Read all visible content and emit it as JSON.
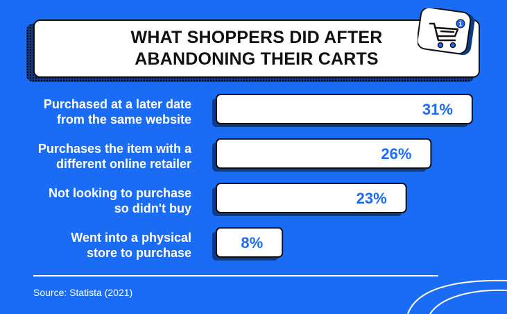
{
  "title": "WHAT SHOPPERS DID AFTER ABANDONING THEIR CARTS",
  "source": "Source: Statista (2021)",
  "badge": {
    "icon": "shopping-cart-icon",
    "count": "1"
  },
  "colors": {
    "background": "#1a6cf5",
    "bar": "#ffffff",
    "value_text": "#1a6cf5",
    "shadow": "#0d3a8a"
  },
  "chart_data": {
    "type": "bar",
    "orientation": "horizontal",
    "title": "WHAT SHOPPERS DID AFTER ABANDONING THEIR CARTS",
    "categories": [
      [
        "Purchased at a later date",
        "from the same website"
      ],
      [
        "Purchases the item with a",
        "different online retailer"
      ],
      [
        "Not looking to purchase",
        "so didn't buy"
      ],
      [
        "Went into a physical",
        "store to purchase"
      ]
    ],
    "values": [
      31,
      26,
      23,
      8
    ],
    "value_labels": [
      "31%",
      "26%",
      "23%",
      "8%"
    ],
    "unit": "%",
    "grid": false,
    "legend": "none"
  }
}
